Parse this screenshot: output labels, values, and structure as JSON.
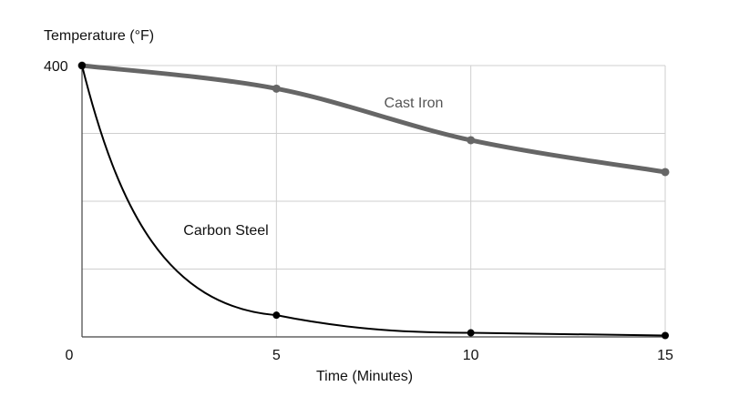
{
  "chart_data": {
    "type": "line",
    "ylabel": "Temperature (°F)",
    "xlabel": "Time (Minutes)",
    "x_ticks": [
      "0",
      "5",
      "10",
      "15"
    ],
    "y_ticks": [
      "400"
    ],
    "xlim": [
      0,
      15
    ],
    "ylim": [
      0,
      400
    ],
    "grid": true,
    "series": [
      {
        "name": "Cast Iron",
        "color": "#666666",
        "x": [
          0,
          5,
          10,
          15
        ],
        "y": [
          400,
          366,
          290,
          243
        ]
      },
      {
        "name": "Carbon Steel",
        "color": "#000000",
        "x": [
          0,
          5,
          10,
          15
        ],
        "y": [
          400,
          32,
          6,
          2
        ]
      }
    ]
  }
}
